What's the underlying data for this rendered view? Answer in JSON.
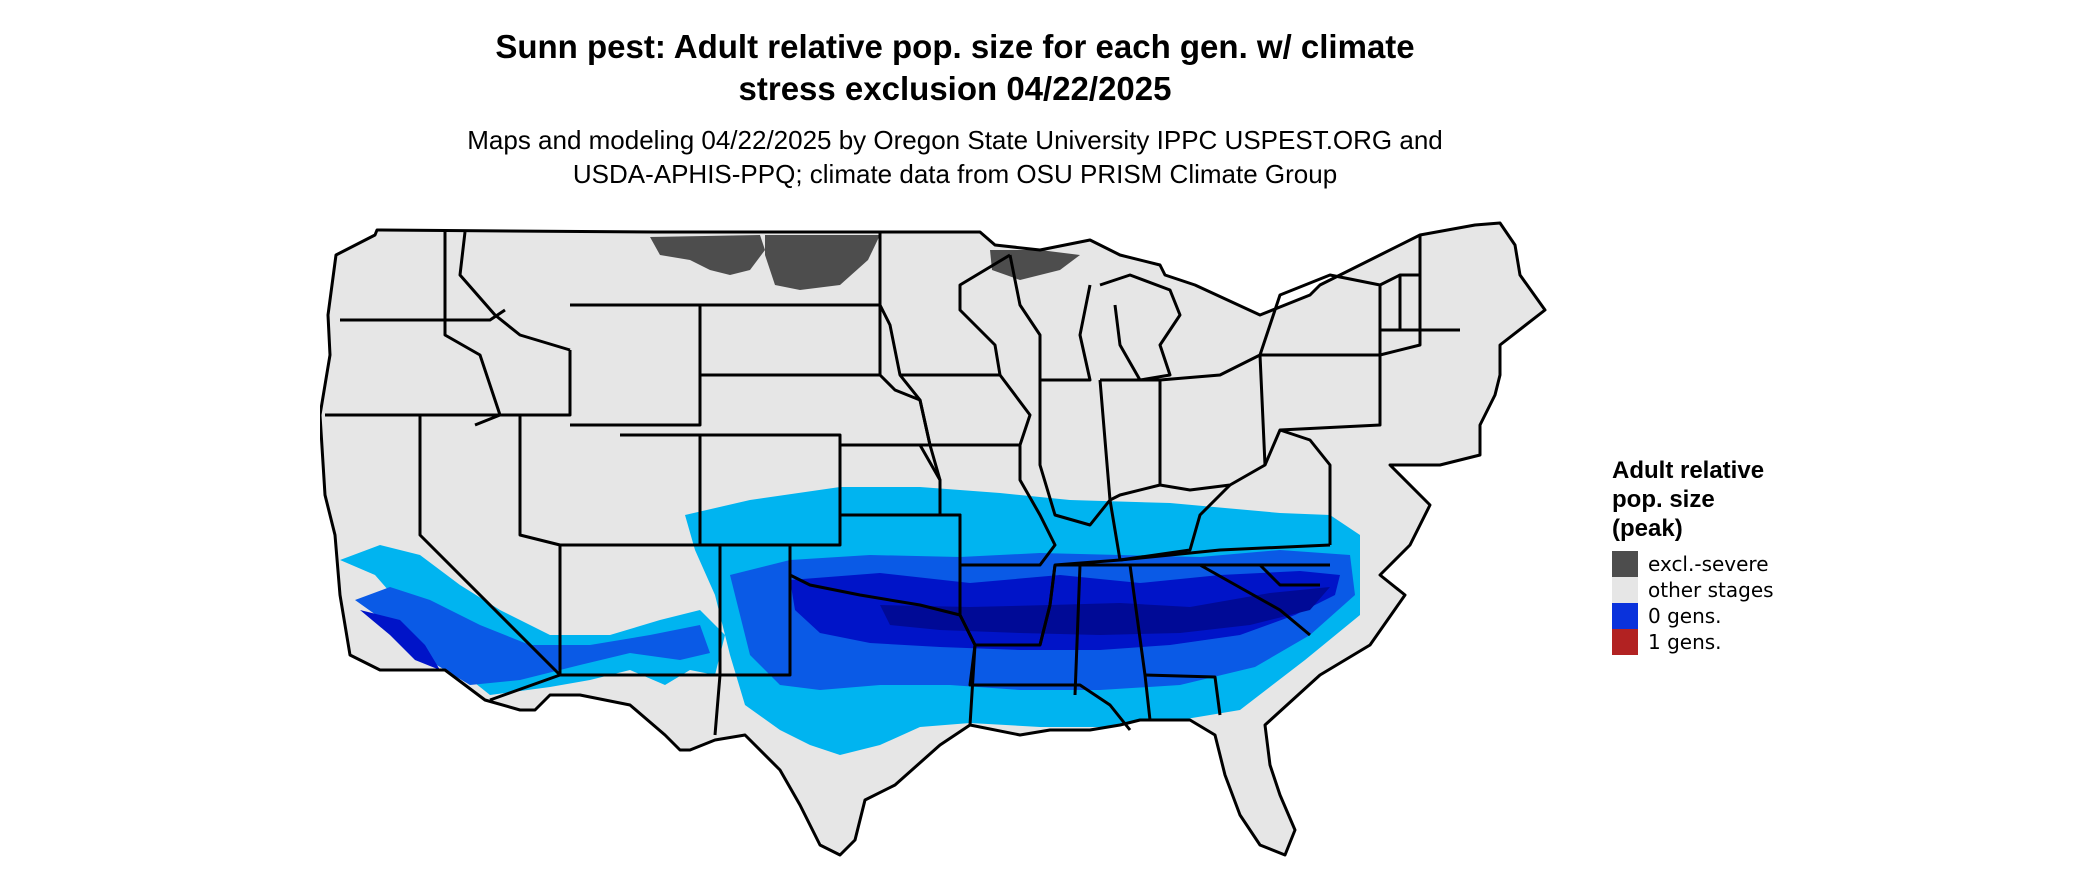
{
  "title": {
    "line1": "Sunn pest: Adult relative pop. size for each gen. w/ climate",
    "line2": "stress exclusion 04/22/2025"
  },
  "subtitle": {
    "line1": "Maps and modeling 04/22/2025 by Oregon State University IPPC USPEST.ORG and",
    "line2": "USDA-APHIS-PPQ; climate data from OSU PRISM Climate Group"
  },
  "map": {
    "region": "contiguous-united-states",
    "colors": {
      "land": "#e6e6e6",
      "excluded": "#4d4d4d",
      "light_blue": "#00b4f0",
      "mid_blue": "#0a5ae6",
      "dark_blue": "#0014c8",
      "darkest_blue": "#000a96",
      "borders": "#000000"
    }
  },
  "legend": {
    "title_lines": [
      "Adult relative",
      "pop. size",
      "(peak)"
    ],
    "items": [
      {
        "label": "excl.-severe",
        "color": "#4d4d4d"
      },
      {
        "label": "other stages",
        "color": "#e6e6e6"
      },
      {
        "label": "0 gens.",
        "color": "#0a32dc"
      },
      {
        "label": "1 gens.",
        "color": "#b22222"
      }
    ]
  }
}
